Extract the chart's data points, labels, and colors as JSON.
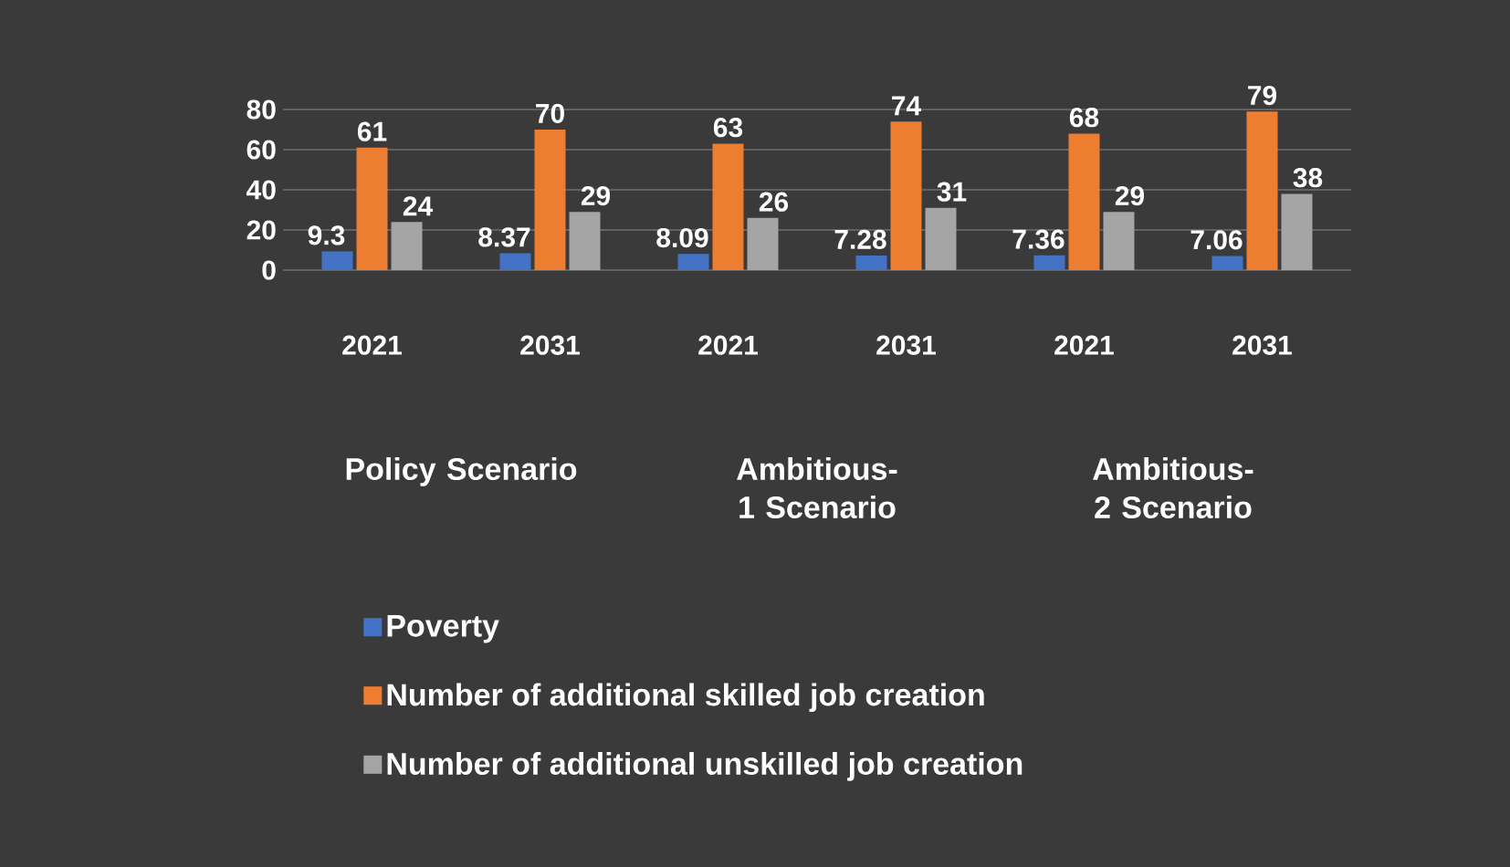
{
  "chart_data": {
    "type": "bar",
    "categories": [
      "2021",
      "2031",
      "2021",
      "2031",
      "2021",
      "2031"
    ],
    "series": [
      {
        "name": "Poverty",
        "color": "#4472c4",
        "values": [
          9.3,
          8.37,
          8.09,
          7.28,
          7.36,
          7.06
        ]
      },
      {
        "name": "Number of additional skilled job creation",
        "color": "#ed7d31",
        "values": [
          61,
          70,
          63,
          74,
          68,
          79
        ]
      },
      {
        "name": "Number of additional unskilled job creation",
        "color": "#a5a5a5",
        "values": [
          24,
          29,
          26,
          31,
          29,
          38
        ]
      }
    ],
    "annotations": [
      "Policy Scenario",
      "Ambitious-1 Scenario",
      "Ambitious-2 Scenario"
    ],
    "ylim": [
      0,
      80
    ],
    "yticks": [
      0,
      20,
      40,
      60,
      80
    ],
    "grid": "y",
    "legend": "bottom",
    "data_labels": true
  }
}
